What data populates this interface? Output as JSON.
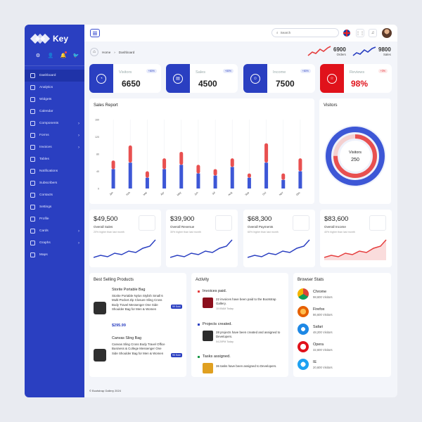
{
  "brand": {
    "name": "Key"
  },
  "sidebar": {
    "items": [
      {
        "label": "Dashboard",
        "icon": "dashboard-icon",
        "active": true,
        "chevron": false
      },
      {
        "label": "Analytics",
        "icon": "chart-icon",
        "chevron": false
      },
      {
        "label": "Widgets",
        "icon": "box-icon",
        "chevron": false
      },
      {
        "label": "Calendar",
        "icon": "calendar-icon",
        "chevron": false
      },
      {
        "label": "Components",
        "icon": "components-icon",
        "chevron": true
      },
      {
        "label": "Forms",
        "icon": "forms-icon",
        "chevron": true
      },
      {
        "label": "Invoices",
        "icon": "invoice-icon",
        "chevron": true
      },
      {
        "label": "Tables",
        "icon": "table-icon",
        "chevron": false
      },
      {
        "label": "Notifications",
        "icon": "bell-icon",
        "chevron": false
      },
      {
        "label": "Subscribers",
        "icon": "users-icon",
        "chevron": false
      },
      {
        "label": "Contacts",
        "icon": "contacts-icon",
        "chevron": false
      },
      {
        "label": "Settings",
        "icon": "gear-icon",
        "chevron": false
      },
      {
        "label": "Profile",
        "icon": "user-icon",
        "chevron": false
      },
      {
        "label": "Cards",
        "icon": "card-icon",
        "chevron": true
      },
      {
        "label": "Graphs",
        "icon": "graph-icon",
        "chevron": true
      },
      {
        "label": "Maps",
        "icon": "map-icon",
        "chevron": false
      }
    ]
  },
  "topbar": {
    "search_placeholder": "Search"
  },
  "breadcrumb": {
    "home": "Home",
    "current": "Dashboard"
  },
  "mini_stats": [
    {
      "value": "6900",
      "label": "Orders",
      "color": "#e53e3e"
    },
    {
      "value": "9800",
      "label": "Sales",
      "color": "#2a3fc1"
    }
  ],
  "kpis": [
    {
      "title": "Visitors",
      "value": "6650",
      "badge": "+80%",
      "color": "#2a3fc1",
      "icon": "pie-icon"
    },
    {
      "title": "Sales",
      "value": "4500",
      "badge": "+80%",
      "color": "#2a3fc1",
      "icon": "note-icon"
    },
    {
      "title": "Income",
      "value": "7500",
      "badge": "+80%",
      "color": "#2a3fc1",
      "icon": "smile-icon"
    },
    {
      "title": "Reviews",
      "value": "98%",
      "badge": "+3%",
      "color": "#e0121b",
      "icon": "star-icon"
    }
  ],
  "sales_report": {
    "title": "Sales Report"
  },
  "visitors": {
    "title": "Visitors",
    "center_label": "Visitors",
    "center_value": "250"
  },
  "revenue_cards": [
    {
      "value": "$49,500",
      "label": "Overall Sales",
      "note": "20% higher than last month",
      "color": "#2a3fc1"
    },
    {
      "value": "$39,900",
      "label": "Overall Revenue",
      "note": "30% higher than last month",
      "color": "#2a3fc1"
    },
    {
      "value": "$68,300",
      "label": "Overall Payments",
      "note": "60% higher than last month",
      "color": "#2a3fc1"
    },
    {
      "value": "$83,600",
      "label": "Overall Income",
      "note": "40% higher than last month",
      "color": "#e53e3e"
    }
  ],
  "best_selling": {
    "title": "Best Selling Products",
    "items": [
      {
        "name": "Storite Portable Bag",
        "desc": "Storite Portable Nylon Stylish Small 6 Multi-Pocket Zip Closure Sling Cross Body Travel Messenger One Side Shoulder Bag for Men & Women",
        "price": "$295.99",
        "sold": "99 Sold"
      },
      {
        "name": "Canvas Sling Bag",
        "desc": "Canvas Sling Cross Body Travel Office Business & College Messenger One Side Shoulder Bag for Men & Women",
        "price": "",
        "sold": "95 Sold"
      }
    ]
  },
  "activity": {
    "title": "Activity",
    "items": [
      {
        "title": "Invoices paid.",
        "desc": "22 invoices have been paid to the Bootstrap Gallery.",
        "time": "10:00AM Today",
        "color": "#e53e3e"
      },
      {
        "title": "Projects created.",
        "desc": "28 projects have been created and assigned to Developers.",
        "time": "04:20PM Today",
        "color": "#2a3fc1"
      },
      {
        "title": "Tasks assigned.",
        "desc": "36 tasks have been assigned to Developers.",
        "time": "",
        "color": "#1d9a4a"
      }
    ]
  },
  "browser_stats": {
    "title": "Browser Stats",
    "items": [
      {
        "name": "Chrome",
        "visitors": "98,600 Visitors",
        "icon": "chrome-icon"
      },
      {
        "name": "Firefox",
        "visitors": "86,600 Visitors",
        "icon": "firefox-icon"
      },
      {
        "name": "Safari",
        "visitors": "48,200 Visitors",
        "icon": "safari-icon"
      },
      {
        "name": "Opera",
        "visitors": "32,600 Visitors",
        "icon": "opera-icon"
      },
      {
        "name": "IE",
        "visitors": "20,600 Visitors",
        "icon": "ie-icon"
      }
    ]
  },
  "footer": {
    "text": "© Bootstrap Gallery 2024"
  },
  "chart_data": [
    {
      "type": "bar",
      "stacked": true,
      "categories": [
        "Jan",
        "Feb",
        "Mar",
        "Apr",
        "May",
        "Jun",
        "Jul",
        "Aug",
        "Sep",
        "Oct",
        "Nov",
        "Dec"
      ],
      "yticks": [
        0,
        40,
        80,
        120,
        160
      ],
      "ylim": [
        0,
        160
      ],
      "series": [
        {
          "values": [
            45,
            60,
            25,
            45,
            55,
            35,
            30,
            50,
            25,
            60,
            20,
            40
          ],
          "color": "#3d57d6"
        },
        {
          "values": [
            20,
            40,
            15,
            25,
            30,
            20,
            15,
            20,
            10,
            45,
            15,
            30
          ],
          "color": "#e85050"
        }
      ],
      "xlabel": "",
      "ylabel": "",
      "title": "Sales Report"
    },
    {
      "type": "pie",
      "donut": true,
      "slices": [
        {
          "value": 75,
          "color": "#e85050"
        },
        {
          "value": 100,
          "color": "#3d57d6"
        }
      ],
      "title": "Visitors"
    }
  ]
}
